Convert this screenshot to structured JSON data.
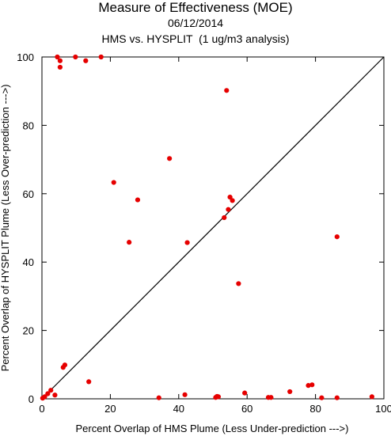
{
  "chart_data": {
    "type": "scatter",
    "title": "Measure of Effectiveness (MOE)",
    "subtitle_date": "06/12/2014",
    "subtitle": "HMS vs. HYSPLIT  (1 ug/m3 analysis)",
    "xlabel": "Percent Overlap of HMS Plume (Less Under-prediction --->)",
    "ylabel": "Percent Overlap of HYSPLIT Plume (Less Over-prediction --->)",
    "xlim": [
      0,
      100
    ],
    "ylim": [
      0,
      100
    ],
    "x_ticks": [
      "0",
      "20",
      "40",
      "60",
      "80",
      "100"
    ],
    "y_ticks": [
      "0",
      "20",
      "40",
      "60",
      "80",
      "100"
    ],
    "reference_line": "y = x",
    "point_color": "#e60000",
    "grid": false,
    "points": [
      {
        "x": 4.5,
        "y": 100
      },
      {
        "x": 9.8,
        "y": 100
      },
      {
        "x": 17.3,
        "y": 100
      },
      {
        "x": 5.3,
        "y": 98.9
      },
      {
        "x": 12.8,
        "y": 98.9
      },
      {
        "x": 5.3,
        "y": 97.0
      },
      {
        "x": 54.0,
        "y": 90.2
      },
      {
        "x": 37.3,
        "y": 70.3
      },
      {
        "x": 21.0,
        "y": 63.3
      },
      {
        "x": 28.0,
        "y": 58.2
      },
      {
        "x": 55.0,
        "y": 59.0
      },
      {
        "x": 55.7,
        "y": 58.0
      },
      {
        "x": 54.5,
        "y": 55.4
      },
      {
        "x": 53.3,
        "y": 53.0
      },
      {
        "x": 86.3,
        "y": 47.4
      },
      {
        "x": 25.5,
        "y": 45.8
      },
      {
        "x": 42.5,
        "y": 45.7
      },
      {
        "x": 57.5,
        "y": 33.7
      },
      {
        "x": 6.7,
        "y": 9.9
      },
      {
        "x": 6.2,
        "y": 9.2
      },
      {
        "x": 13.7,
        "y": 5.0
      },
      {
        "x": 2.6,
        "y": 2.5
      },
      {
        "x": 1.7,
        "y": 1.5
      },
      {
        "x": 3.8,
        "y": 1.1
      },
      {
        "x": 0.8,
        "y": 0.6
      },
      {
        "x": 0.2,
        "y": 0.2
      },
      {
        "x": 34.2,
        "y": 0.3
      },
      {
        "x": 41.8,
        "y": 1.2
      },
      {
        "x": 50.8,
        "y": 0.4
      },
      {
        "x": 51.2,
        "y": 0.7
      },
      {
        "x": 51.6,
        "y": 0.6
      },
      {
        "x": 59.3,
        "y": 1.7
      },
      {
        "x": 66.2,
        "y": 0.4
      },
      {
        "x": 67.0,
        "y": 0.4
      },
      {
        "x": 72.5,
        "y": 2.1
      },
      {
        "x": 77.9,
        "y": 3.9
      },
      {
        "x": 79.0,
        "y": 4.1
      },
      {
        "x": 81.8,
        "y": 0.3
      },
      {
        "x": 86.3,
        "y": 0.3
      },
      {
        "x": 96.5,
        "y": 0.6
      }
    ]
  }
}
